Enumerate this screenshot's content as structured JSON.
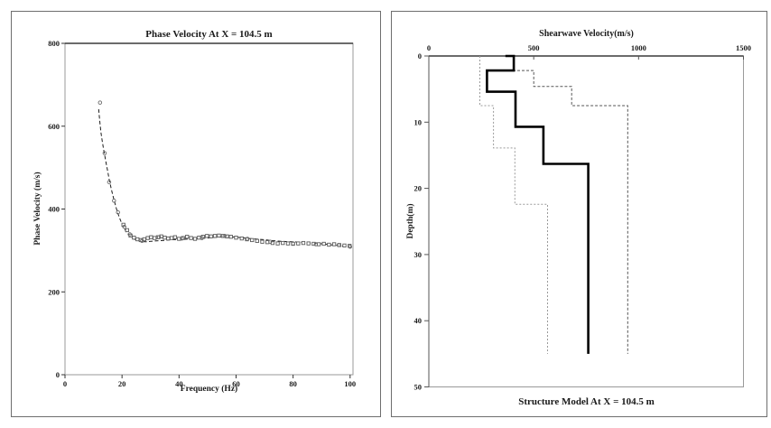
{
  "colors": {
    "ink": "#1a1a1a",
    "frame_gray": "#9a9a9a",
    "frame_dark": "#3a3a3a",
    "model_solid": "#000000",
    "bound_light": "#9a9a9a",
    "bound_dark": "#565656"
  },
  "chart_data": [
    {
      "type": "line",
      "title": "Phase Velocity At X = 104.5 m",
      "xlabel": "Frequency (Hz)",
      "ylabel": "Phase Velocity (m/s)",
      "xlim": [
        0,
        100
      ],
      "ylim": [
        0,
        800
      ],
      "x_ticks": [
        0,
        20,
        40,
        60,
        80,
        100
      ],
      "y_ticks": [
        0,
        200,
        400,
        600,
        800
      ],
      "grid": false,
      "legend": "none",
      "series": [
        {
          "name": "dispersion-curve",
          "style": "dashed-line",
          "points": [
            [
              11.8,
              641
            ],
            [
              12.2,
              612
            ],
            [
              12.6,
              585
            ],
            [
              13,
              566
            ],
            [
              13.5,
              546
            ],
            [
              14,
              527
            ],
            [
              14.5,
              508
            ],
            [
              15,
              490
            ],
            [
              15.5,
              472
            ],
            [
              16,
              456
            ],
            [
              16.5,
              441
            ],
            [
              17,
              427
            ],
            [
              17.5,
              414
            ],
            [
              18,
              402
            ],
            [
              18.5,
              391
            ],
            [
              19,
              381
            ],
            [
              19.5,
              372
            ],
            [
              20,
              364
            ],
            [
              20.5,
              357
            ],
            [
              21,
              351
            ],
            [
              21.5,
              345
            ],
            [
              22,
              340
            ],
            [
              22.5,
              336
            ],
            [
              23,
              333
            ],
            [
              23.5,
              330
            ],
            [
              24,
              328
            ],
            [
              25,
              325
            ],
            [
              26,
              323
            ],
            [
              27,
              322
            ],
            [
              28,
              321
            ],
            [
              29,
              321
            ],
            [
              30,
              322
            ],
            [
              32,
              323
            ],
            [
              34,
              324
            ],
            [
              36,
              325
            ],
            [
              38,
              326
            ],
            [
              40,
              326
            ],
            [
              42,
              327
            ],
            [
              44,
              328
            ],
            [
              46,
              328
            ],
            [
              48,
              329
            ],
            [
              50,
              330
            ],
            [
              52,
              331
            ],
            [
              54,
              332
            ],
            [
              56,
              333
            ],
            [
              58,
              333
            ],
            [
              60,
              332
            ],
            [
              62,
              331
            ],
            [
              64,
              329
            ],
            [
              66,
              328
            ],
            [
              68,
              327
            ],
            [
              70,
              326
            ],
            [
              72,
              324
            ],
            [
              74,
              323
            ],
            [
              76,
              322
            ],
            [
              78,
              321
            ],
            [
              80,
              321
            ],
            [
              82,
              320
            ],
            [
              84,
              319
            ],
            [
              86,
              318
            ],
            [
              88,
              317
            ],
            [
              90,
              316
            ],
            [
              92,
              315
            ],
            [
              94,
              313
            ],
            [
              96,
              312
            ],
            [
              98,
              310
            ],
            [
              100,
              308
            ]
          ]
        },
        {
          "name": "picked-phase-velocity-squares",
          "style": "open-square-markers",
          "points": [
            [
              20.5,
              362
            ],
            [
              21.8,
              349
            ],
            [
              23,
              336
            ],
            [
              24.2,
              331
            ],
            [
              25.4,
              327
            ],
            [
              26.6,
              325
            ],
            [
              27.8,
              327
            ],
            [
              29,
              330
            ],
            [
              30.2,
              332
            ],
            [
              31.4,
              330
            ],
            [
              32.6,
              332
            ],
            [
              33.8,
              334
            ],
            [
              35,
              331
            ],
            [
              36.2,
              329
            ],
            [
              37.4,
              330
            ],
            [
              38.6,
              332
            ],
            [
              40,
              328
            ],
            [
              41.4,
              330
            ],
            [
              42.8,
              333
            ],
            [
              44.2,
              330
            ],
            [
              45.6,
              328
            ],
            [
              47,
              331
            ],
            [
              48.4,
              333
            ],
            [
              49.8,
              335
            ],
            [
              51.2,
              334
            ],
            [
              52.6,
              335
            ],
            [
              54,
              336
            ],
            [
              55.4,
              335
            ],
            [
              56.8,
              334
            ],
            [
              58.2,
              333
            ],
            [
              60,
              331
            ],
            [
              62,
              329
            ],
            [
              63.8,
              327
            ],
            [
              65.6,
              325
            ],
            [
              67.4,
              323
            ],
            [
              69.2,
              321
            ],
            [
              71,
              320
            ],
            [
              72.8,
              318
            ],
            [
              74.6,
              317
            ],
            [
              76.4,
              318
            ],
            [
              78.2,
              317
            ],
            [
              80,
              316
            ],
            [
              81.8,
              317
            ],
            [
              83.6,
              318
            ],
            [
              85.4,
              317
            ],
            [
              87.2,
              316
            ],
            [
              89,
              315
            ],
            [
              90.8,
              316
            ],
            [
              92.6,
              314
            ],
            [
              94.4,
              315
            ],
            [
              96.2,
              313
            ],
            [
              98,
              312
            ],
            [
              99.8,
              311
            ]
          ]
        },
        {
          "name": "picked-phase-velocity-circles",
          "style": "open-circle-markers",
          "points": [
            [
              12.3,
              657
            ],
            [
              13.9,
              535
            ],
            [
              15.5,
              465
            ],
            [
              17.2,
              420
            ],
            [
              18.6,
              392
            ],
            [
              20.8,
              357
            ],
            [
              22.7,
              339
            ],
            [
              27,
              323
            ],
            [
              33,
              332
            ],
            [
              41,
              329
            ],
            [
              48,
              330
            ],
            [
              56,
              335
            ],
            [
              64,
              328
            ],
            [
              72,
              321
            ],
            [
              80,
              317
            ],
            [
              88,
              315
            ],
            [
              96,
              313
            ],
            [
              100,
              309
            ]
          ]
        }
      ]
    },
    {
      "type": "line",
      "title": "Structure Model At X = 104.5 m",
      "top_axis_label": "Shearwave Velocity(m/s)",
      "ylabel": "Depth(m)",
      "vlim": [
        0,
        1500
      ],
      "depth_lim": [
        0,
        50
      ],
      "v_ticks": [
        0,
        500,
        1000,
        1500
      ],
      "depth_ticks": [
        0,
        10,
        20,
        30,
        40,
        50
      ],
      "grid": false,
      "legend": "none",
      "series": [
        {
          "name": "vs-model",
          "style": "solid-step-thick",
          "points": [
            [
              365,
              0
            ],
            [
              405,
              0
            ],
            [
              405,
              2.2
            ],
            [
              277,
              2.2
            ],
            [
              277,
              5.4
            ],
            [
              413,
              5.4
            ],
            [
              413,
              10.7
            ],
            [
              546,
              10.7
            ],
            [
              546,
              16.3
            ],
            [
              760,
              16.3
            ],
            [
              760,
              45
            ]
          ]
        },
        {
          "name": "lower-bound-model",
          "style": "dashed-step-light",
          "points": [
            [
              243,
              0
            ],
            [
              243,
              7.5
            ],
            [
              308,
              7.5
            ],
            [
              308,
              13.9
            ],
            [
              410,
              13.9
            ],
            [
              410,
              22.4
            ],
            [
              566,
              22.4
            ],
            [
              566,
              45
            ]
          ]
        },
        {
          "name": "upper-bound-model",
          "style": "dashed-step-dark",
          "points": [
            [
              405,
              0
            ],
            [
              405,
              2.2
            ],
            [
              500,
              2.2
            ],
            [
              500,
              4.6
            ],
            [
              681,
              4.6
            ],
            [
              681,
              7.5
            ],
            [
              948,
              7.5
            ],
            [
              948,
              45
            ]
          ]
        }
      ]
    }
  ]
}
